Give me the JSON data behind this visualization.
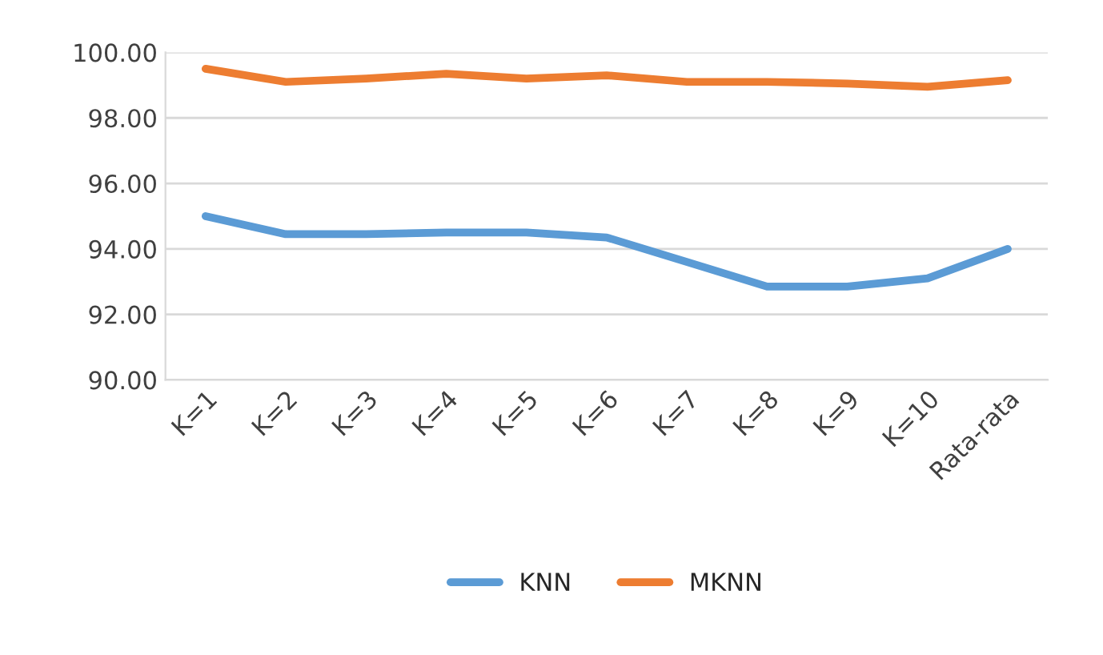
{
  "chart_data": {
    "type": "line",
    "categories": [
      "K=1",
      "K=2",
      "K=3",
      "K=4",
      "K=5",
      "K=6",
      "K=7",
      "K=8",
      "K=9",
      "K=10",
      "Rata-rata"
    ],
    "series": [
      {
        "name": "KNN",
        "color": "#5b9bd5",
        "values": [
          95.0,
          94.45,
          94.45,
          94.5,
          94.5,
          94.35,
          93.6,
          92.85,
          92.85,
          93.1,
          94.0
        ]
      },
      {
        "name": "MKNN",
        "color": "#ed7d31",
        "values": [
          99.5,
          99.1,
          99.2,
          99.35,
          99.2,
          99.3,
          99.1,
          99.1,
          99.05,
          98.95,
          99.15
        ]
      }
    ],
    "ylim": [
      90,
      100
    ],
    "yticks": [
      {
        "value": 90,
        "label": "90.00"
      },
      {
        "value": 92,
        "label": "92.00"
      },
      {
        "value": 94,
        "label": "94.00"
      },
      {
        "value": 96,
        "label": "96.00"
      },
      {
        "value": 98,
        "label": "98.00"
      },
      {
        "value": 100,
        "label": "100.00"
      }
    ],
    "grid": "y",
    "legend": "bottom",
    "marker": "none",
    "line_style": "solid"
  }
}
